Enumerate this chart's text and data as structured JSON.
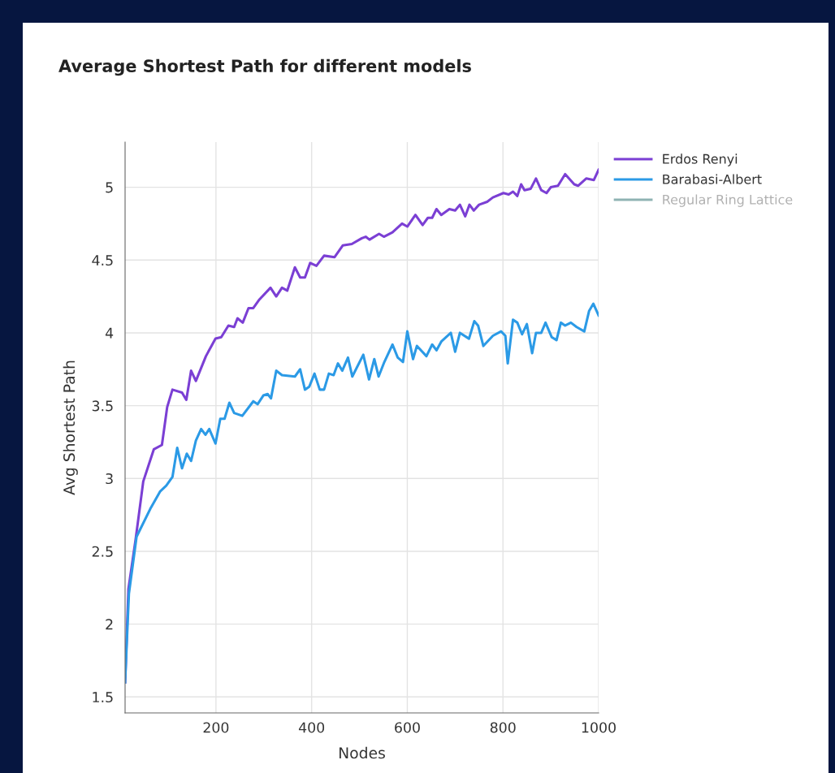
{
  "chart_data": {
    "type": "line",
    "title": "Average Shortest Path for different models",
    "xlabel": "Nodes",
    "ylabel": "Avg Shortest Path",
    "xlim": [
      10,
      1000
    ],
    "ylim": [
      1.39,
      5.31
    ],
    "xticks": [
      200,
      400,
      600,
      800,
      1000
    ],
    "yticks": [
      1.5,
      2,
      2.5,
      3,
      3.5,
      4,
      4.5,
      5
    ],
    "grid": true,
    "legend": "top right",
    "series": [
      {
        "name": "Erdos Renyi",
        "color": "#7b3fd4",
        "x": [
          10,
          17,
          32,
          48,
          70,
          87,
          98,
          109,
          129,
          138,
          148,
          158,
          179,
          199,
          211,
          226,
          238,
          245,
          256,
          268,
          278,
          291,
          314,
          326,
          338,
          349,
          365,
          376,
          386,
          397,
          410,
          426,
          448,
          465,
          484,
          505,
          513,
          521,
          541,
          551,
          569,
          589,
          600,
          617,
          632,
          643,
          652,
          661,
          671,
          688,
          700,
          710,
          721,
          730,
          739,
          750,
          767,
          779,
          801,
          812,
          821,
          830,
          838,
          845,
          858,
          869,
          880,
          891,
          900,
          915,
          930,
          949,
          957,
          974,
          990,
          1000
        ],
        "values": [
          1.6,
          2.24,
          2.58,
          2.98,
          3.2,
          3.23,
          3.49,
          3.61,
          3.59,
          3.54,
          3.74,
          3.67,
          3.84,
          3.96,
          3.97,
          4.05,
          4.04,
          4.1,
          4.07,
          4.17,
          4.17,
          4.23,
          4.31,
          4.25,
          4.31,
          4.29,
          4.45,
          4.38,
          4.38,
          4.48,
          4.46,
          4.53,
          4.52,
          4.6,
          4.61,
          4.65,
          4.66,
          4.64,
          4.68,
          4.66,
          4.69,
          4.75,
          4.73,
          4.81,
          4.74,
          4.79,
          4.79,
          4.85,
          4.81,
          4.85,
          4.84,
          4.88,
          4.8,
          4.88,
          4.84,
          4.88,
          4.9,
          4.93,
          4.96,
          4.95,
          4.97,
          4.94,
          5.02,
          4.98,
          4.99,
          5.06,
          4.98,
          4.96,
          5.0,
          5.01,
          5.09,
          5.02,
          5.01,
          5.06,
          5.05,
          5.12
        ]
      },
      {
        "name": "Barabasi-Albert",
        "color": "#2b9ae6",
        "x": [
          10,
          18,
          34,
          64,
          83,
          96,
          109,
          119,
          129,
          139,
          148,
          158,
          169,
          178,
          186,
          199,
          209,
          218,
          228,
          238,
          255,
          278,
          287,
          299,
          308,
          315,
          326,
          338,
          365,
          376,
          386,
          395,
          406,
          417,
          426,
          436,
          446,
          455,
          464,
          476,
          485,
          508,
          520,
          531,
          540,
          552,
          569,
          580,
          591,
          600,
          612,
          620,
          640,
          652,
          661,
          671,
          691,
          700,
          710,
          729,
          740,
          748,
          759,
          779,
          796,
          805,
          810,
          821,
          830,
          840,
          850,
          861,
          869,
          880,
          889,
          902,
          912,
          921,
          930,
          942,
          954,
          970,
          980,
          989,
          1000
        ],
        "values": [
          1.6,
          2.21,
          2.6,
          2.8,
          2.91,
          2.95,
          3.01,
          3.21,
          3.07,
          3.17,
          3.12,
          3.26,
          3.34,
          3.3,
          3.34,
          3.24,
          3.41,
          3.41,
          3.52,
          3.45,
          3.43,
          3.53,
          3.51,
          3.57,
          3.58,
          3.55,
          3.74,
          3.71,
          3.7,
          3.75,
          3.61,
          3.63,
          3.72,
          3.61,
          3.61,
          3.72,
          3.71,
          3.79,
          3.74,
          3.83,
          3.7,
          3.85,
          3.68,
          3.82,
          3.7,
          3.8,
          3.92,
          3.83,
          3.8,
          4.01,
          3.82,
          3.91,
          3.84,
          3.92,
          3.88,
          3.94,
          4.0,
          3.87,
          4.0,
          3.96,
          4.08,
          4.05,
          3.91,
          3.98,
          4.01,
          3.98,
          3.79,
          4.09,
          4.07,
          3.99,
          4.06,
          3.86,
          4.0,
          4.0,
          4.07,
          3.97,
          3.95,
          4.07,
          4.05,
          4.07,
          4.04,
          4.01,
          4.15,
          4.2,
          4.12
        ]
      },
      {
        "name": "Regular Ring Lattice",
        "color": "#8fb3b3"
      }
    ]
  }
}
